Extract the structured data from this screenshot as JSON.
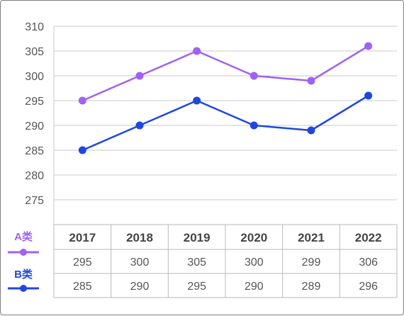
{
  "chart_data": {
    "type": "line",
    "categories": [
      "2017",
      "2018",
      "2019",
      "2020",
      "2021",
      "2022"
    ],
    "series": [
      {
        "name": "A类",
        "color": "#9f62f5",
        "values": [
          295,
          300,
          305,
          300,
          299,
          306
        ]
      },
      {
        "name": "B类",
        "color": "#1e47e0",
        "values": [
          285,
          290,
          295,
          290,
          289,
          296
        ]
      }
    ],
    "yticks": [
      310,
      305,
      300,
      295,
      290,
      285,
      280,
      275
    ],
    "ylim": [
      270,
      310
    ],
    "grid": true,
    "legend": "left, beside data table",
    "data_table": true
  }
}
